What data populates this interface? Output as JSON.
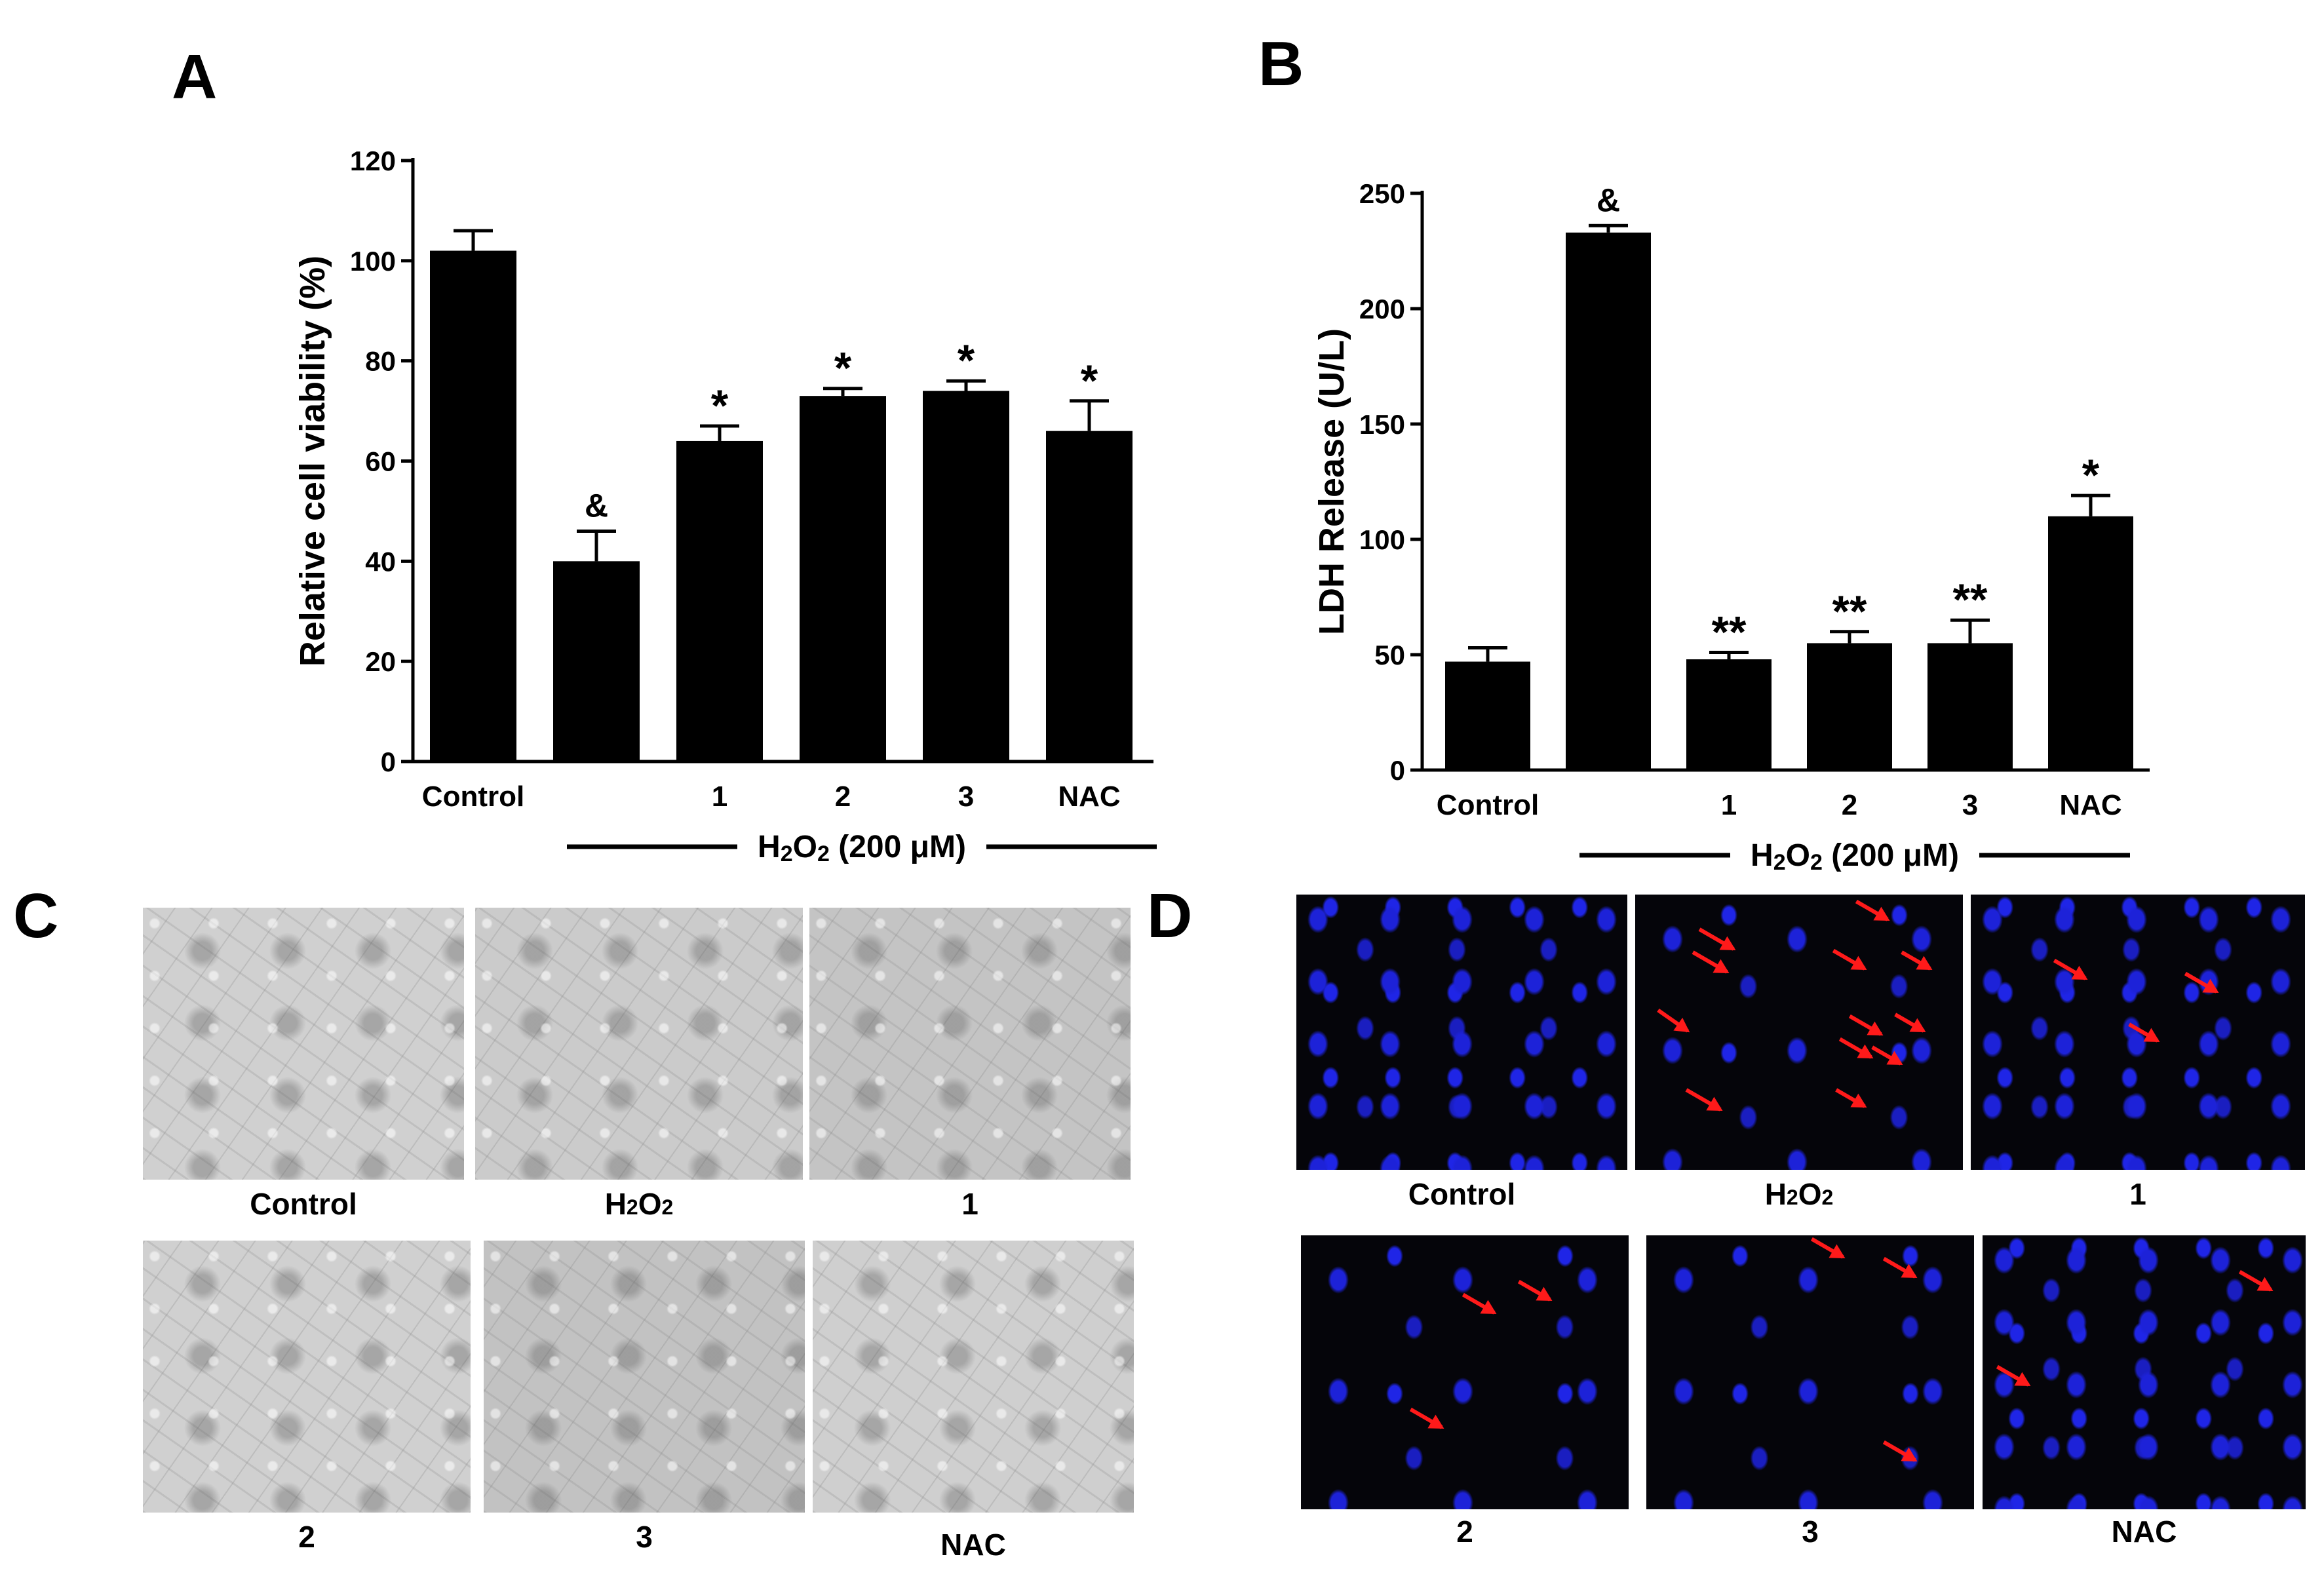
{
  "panels": {
    "a_label": "A",
    "b_label": "B",
    "c_label": "C",
    "d_label": "D"
  },
  "chart_data": [
    {
      "type": "bar",
      "panel": "A",
      "ylabel": "Relative cell viability (%)",
      "xlabel": "",
      "categories": [
        "Control",
        "",
        "1",
        "2",
        "3",
        "NAC"
      ],
      "values": [
        102,
        40,
        64,
        73,
        74,
        66
      ],
      "errors": [
        4,
        6,
        3,
        1.5,
        2,
        6
      ],
      "annotations": [
        "",
        "&",
        "*",
        "*",
        "*",
        "*"
      ],
      "ylim": [
        0,
        120
      ],
      "yticks": [
        "0",
        "20",
        "40",
        "60",
        "80",
        "100",
        "120"
      ],
      "group_label": "H2O2 (200 μM)",
      "bar_color": "#000000"
    },
    {
      "type": "bar",
      "panel": "B",
      "ylabel": "LDH Release (U/L)",
      "xlabel": "",
      "categories": [
        "Control",
        "",
        "1",
        "2",
        "3",
        "NAC"
      ],
      "values": [
        47,
        233,
        48,
        55,
        55,
        110
      ],
      "errors": [
        6,
        3,
        3,
        5,
        10,
        9
      ],
      "annotations": [
        "",
        "&",
        "**",
        "**",
        "**",
        "*"
      ],
      "ylim": [
        0,
        250
      ],
      "yticks": [
        "0",
        "50",
        "100",
        "150",
        "200",
        "250"
      ],
      "group_label": "H2O2 (200 μM)",
      "bar_color": "#000000"
    }
  ],
  "panel_c": {
    "captions": [
      "Control",
      "H2O2",
      "1",
      "2",
      "3",
      "NAC"
    ]
  },
  "panel_d": {
    "captions": [
      "Control",
      "H2O2",
      "1",
      "2",
      "3",
      "NAC"
    ],
    "arrow_color": "#ff1a1a",
    "nuclei_color": "#1d22d8"
  }
}
